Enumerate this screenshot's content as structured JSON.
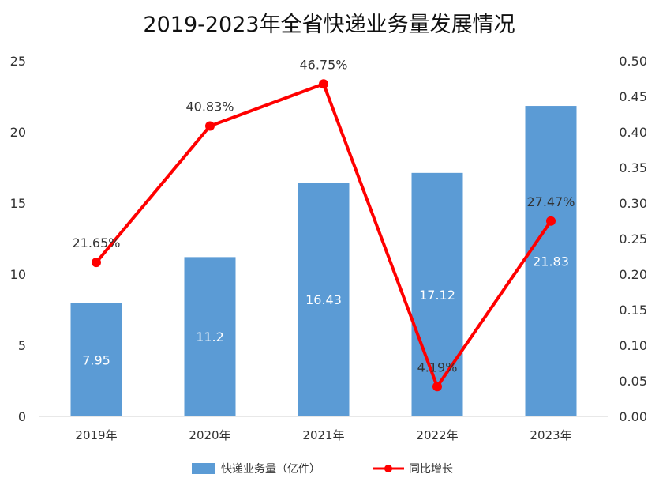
{
  "chart_data": {
    "type": "bar",
    "title": "2019-2023年全省快递业务量发展情况",
    "categories": [
      "2019年",
      "2020年",
      "2021年",
      "2022年",
      "2023年"
    ],
    "series": [
      {
        "name": "快递业务量（亿件）",
        "type": "bar",
        "axis": "left",
        "values": [
          7.95,
          11.2,
          16.43,
          17.12,
          21.83
        ],
        "labels": [
          "7.95",
          "11.2",
          "16.43",
          "17.12",
          "21.83"
        ],
        "color": "#5b9bd5"
      },
      {
        "name": "同比增长",
        "type": "line",
        "axis": "right",
        "values": [
          0.2165,
          0.4083,
          0.4675,
          0.0419,
          0.2747
        ],
        "labels": [
          "21.65%",
          "40.83%",
          "46.75%",
          "4.19%",
          "27.47%"
        ],
        "color": "#ff0000"
      }
    ],
    "y_left": {
      "min": 0,
      "max": 25,
      "ticks": [
        "0",
        "5",
        "10",
        "15",
        "20",
        "25"
      ]
    },
    "y_right": {
      "min": 0,
      "max": 0.5,
      "ticks": [
        "0.00",
        "0.05",
        "0.10",
        "0.15",
        "0.20",
        "0.25",
        "0.30",
        "0.35",
        "0.40",
        "0.45",
        "0.50"
      ]
    },
    "grid": false,
    "legend": "bottom"
  }
}
